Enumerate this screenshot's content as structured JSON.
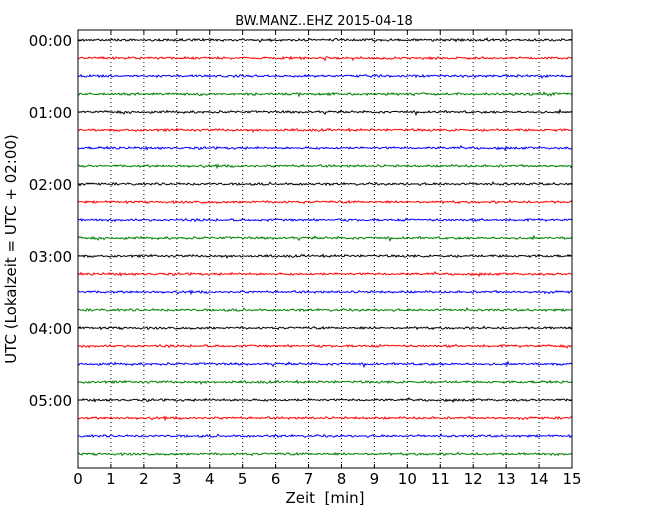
{
  "chart_data": {
    "type": "line",
    "title": "BW.MANZ..EHZ 2015-04-18",
    "xlabel": "Zeit  [min]",
    "ylabel": "UTC (Lokalzeit = UTC + 02:00)",
    "xlim": [
      0,
      15
    ],
    "ylim_hours": [
      0,
      6
    ],
    "x_ticks": [
      "0",
      "1",
      "2",
      "3",
      "4",
      "5",
      "6",
      "7",
      "8",
      "9",
      "10",
      "11",
      "12",
      "13",
      "14",
      "15"
    ],
    "y_ticks": [
      {
        "label": "00:00",
        "hour": 0
      },
      {
        "label": "01:00",
        "hour": 1
      },
      {
        "label": "02:00",
        "hour": 2
      },
      {
        "label": "03:00",
        "hour": 3
      },
      {
        "label": "04:00",
        "hour": 4
      },
      {
        "label": "05:00",
        "hour": 5
      }
    ],
    "grid": "vertical dotted",
    "trace_interval_minutes": 15,
    "trace_colors": [
      "#000000",
      "#ff0000",
      "#0000ff",
      "#008000"
    ],
    "traces": [
      {
        "start": "00:00",
        "color": "#000000"
      },
      {
        "start": "00:15",
        "color": "#ff0000"
      },
      {
        "start": "00:30",
        "color": "#0000ff"
      },
      {
        "start": "00:45",
        "color": "#008000"
      },
      {
        "start": "01:00",
        "color": "#000000"
      },
      {
        "start": "01:15",
        "color": "#ff0000"
      },
      {
        "start": "01:30",
        "color": "#0000ff"
      },
      {
        "start": "01:45",
        "color": "#008000"
      },
      {
        "start": "02:00",
        "color": "#000000"
      },
      {
        "start": "02:15",
        "color": "#ff0000"
      },
      {
        "start": "02:30",
        "color": "#0000ff"
      },
      {
        "start": "02:45",
        "color": "#008000"
      },
      {
        "start": "03:00",
        "color": "#000000"
      },
      {
        "start": "03:15",
        "color": "#ff0000"
      },
      {
        "start": "03:30",
        "color": "#0000ff"
      },
      {
        "start": "03:45",
        "color": "#008000"
      },
      {
        "start": "04:00",
        "color": "#000000"
      },
      {
        "start": "04:15",
        "color": "#ff0000"
      },
      {
        "start": "04:30",
        "color": "#0000ff"
      },
      {
        "start": "04:45",
        "color": "#008000"
      },
      {
        "start": "05:00",
        "color": "#000000"
      },
      {
        "start": "05:15",
        "color": "#ff0000"
      },
      {
        "start": "05:30",
        "color": "#0000ff"
      },
      {
        "start": "05:45",
        "color": "#008000"
      }
    ]
  }
}
